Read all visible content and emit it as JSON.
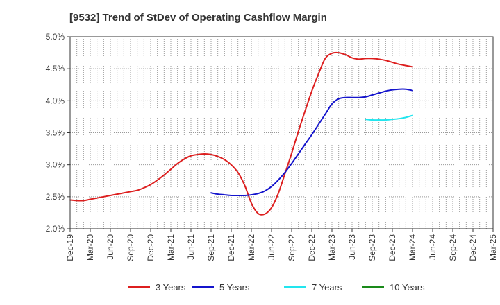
{
  "chart_data": {
    "type": "line",
    "title": "[9532]  Trend of StDev of Operating Cashflow Margin",
    "xlabel": "",
    "ylabel": "",
    "x_ticks": [
      "Dec-19",
      "Mar-20",
      "Jun-20",
      "Sep-20",
      "Dec-20",
      "Mar-21",
      "Jun-21",
      "Sep-21",
      "Dec-21",
      "Mar-22",
      "Jun-22",
      "Sep-22",
      "Dec-22",
      "Mar-23",
      "Jun-23",
      "Sep-23",
      "Dec-23",
      "Mar-24",
      "Jun-24",
      "Sep-24",
      "Dec-24",
      "Mar-25"
    ],
    "y_ticks": [
      "2.0%",
      "2.5%",
      "3.0%",
      "3.5%",
      "4.0%",
      "4.5%",
      "5.0%"
    ],
    "ylim": [
      2.0,
      5.0
    ],
    "grid": true,
    "legend_position": "bottom",
    "series": [
      {
        "name": "3 Years",
        "color": "#dd1f1f",
        "points": [
          [
            "Dec-19",
            2.45
          ],
          [
            "Jan-20",
            2.44
          ],
          [
            "Feb-20",
            2.44
          ],
          [
            "Mar-20",
            2.46
          ],
          [
            "Apr-20",
            2.48
          ],
          [
            "May-20",
            2.5
          ],
          [
            "Jun-20",
            2.52
          ],
          [
            "Jul-20",
            2.54
          ],
          [
            "Aug-20",
            2.56
          ],
          [
            "Sep-20",
            2.58
          ],
          [
            "Oct-20",
            2.6
          ],
          [
            "Nov-20",
            2.64
          ],
          [
            "Dec-20",
            2.69
          ],
          [
            "Jan-21",
            2.76
          ],
          [
            "Feb-21",
            2.84
          ],
          [
            "Mar-21",
            2.93
          ],
          [
            "Apr-21",
            3.02
          ],
          [
            "May-21",
            3.09
          ],
          [
            "Jun-21",
            3.14
          ],
          [
            "Jul-21",
            3.16
          ],
          [
            "Aug-21",
            3.17
          ],
          [
            "Sep-21",
            3.16
          ],
          [
            "Oct-21",
            3.13
          ],
          [
            "Nov-21",
            3.08
          ],
          [
            "Dec-21",
            3.0
          ],
          [
            "Jan-22",
            2.88
          ],
          [
            "Feb-22",
            2.68
          ],
          [
            "Mar-22",
            2.4
          ],
          [
            "Apr-22",
            2.24
          ],
          [
            "May-22",
            2.23
          ],
          [
            "Jun-22",
            2.33
          ],
          [
            "Jul-22",
            2.55
          ],
          [
            "Aug-22",
            2.86
          ],
          [
            "Sep-22",
            3.18
          ],
          [
            "Oct-22",
            3.52
          ],
          [
            "Nov-22",
            3.84
          ],
          [
            "Dec-22",
            4.15
          ],
          [
            "Jan-23",
            4.42
          ],
          [
            "Feb-23",
            4.66
          ],
          [
            "Mar-23",
            4.74
          ],
          [
            "Apr-23",
            4.75
          ],
          [
            "May-23",
            4.72
          ],
          [
            "Jun-23",
            4.67
          ],
          [
            "Jul-23",
            4.65
          ],
          [
            "Aug-23",
            4.66
          ],
          [
            "Sep-23",
            4.66
          ],
          [
            "Oct-23",
            4.65
          ],
          [
            "Nov-23",
            4.63
          ],
          [
            "Dec-23",
            4.6
          ],
          [
            "Jan-24",
            4.57
          ],
          [
            "Mar-24",
            4.53
          ]
        ]
      },
      {
        "name": "5 Years",
        "color": "#1414cc",
        "points": [
          [
            "Sep-21",
            2.56
          ],
          [
            "Oct-21",
            2.54
          ],
          [
            "Nov-21",
            2.53
          ],
          [
            "Dec-21",
            2.52
          ],
          [
            "Jan-22",
            2.52
          ],
          [
            "Feb-22",
            2.52
          ],
          [
            "Mar-22",
            2.53
          ],
          [
            "Apr-22",
            2.55
          ],
          [
            "May-22",
            2.59
          ],
          [
            "Jun-22",
            2.66
          ],
          [
            "Jul-22",
            2.76
          ],
          [
            "Aug-22",
            2.88
          ],
          [
            "Sep-22",
            3.02
          ],
          [
            "Oct-22",
            3.17
          ],
          [
            "Nov-22",
            3.32
          ],
          [
            "Dec-22",
            3.47
          ],
          [
            "Jan-23",
            3.63
          ],
          [
            "Feb-23",
            3.79
          ],
          [
            "Mar-23",
            3.95
          ],
          [
            "Apr-23",
            4.03
          ],
          [
            "May-23",
            4.05
          ],
          [
            "Jun-23",
            4.05
          ],
          [
            "Jul-23",
            4.05
          ],
          [
            "Aug-23",
            4.06
          ],
          [
            "Sep-23",
            4.09
          ],
          [
            "Oct-23",
            4.12
          ],
          [
            "Nov-23",
            4.15
          ],
          [
            "Dec-23",
            4.17
          ],
          [
            "Jan-24",
            4.18
          ],
          [
            "Feb-24",
            4.18
          ],
          [
            "Mar-24",
            4.16
          ]
        ]
      },
      {
        "name": "7 Years",
        "color": "#22e5ee",
        "points": [
          [
            "Aug-23",
            3.71
          ],
          [
            "Sep-23",
            3.7
          ],
          [
            "Oct-23",
            3.7
          ],
          [
            "Nov-23",
            3.7
          ],
          [
            "Dec-23",
            3.71
          ],
          [
            "Jan-24",
            3.72
          ],
          [
            "Feb-24",
            3.74
          ],
          [
            "Mar-24",
            3.77
          ]
        ]
      },
      {
        "name": "10 Years",
        "color": "#1a8a1a",
        "points": []
      }
    ]
  }
}
